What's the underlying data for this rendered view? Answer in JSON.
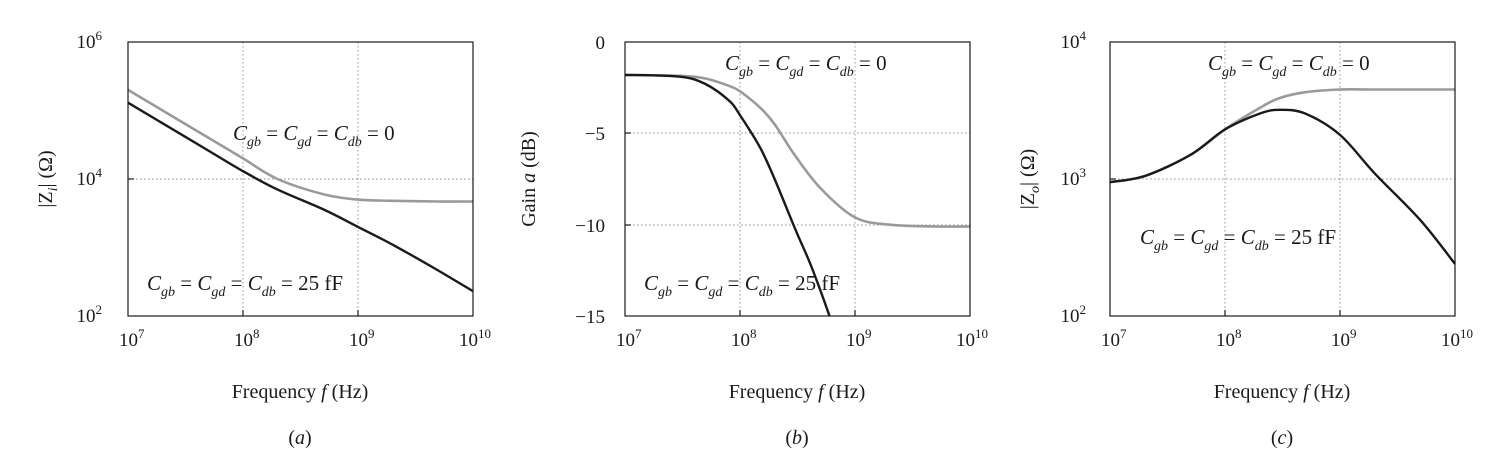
{
  "chart_data": [
    {
      "type": "line",
      "panel_label": "(a)",
      "xlabel": "Frequency f (Hz)",
      "ylabel": "|Z_i| (Ω)",
      "x_scale": "log",
      "y_scale": "log",
      "xlim": [
        10000000,
        10000000000
      ],
      "ylim": [
        100,
        1000000
      ],
      "grid": true,
      "x_ticks": [
        {
          "base": "10",
          "exp": "7"
        },
        {
          "base": "10",
          "exp": "8"
        },
        {
          "base": "10",
          "exp": "9"
        },
        {
          "base": "10",
          "exp": "10"
        }
      ],
      "y_ticks": [
        {
          "base": "10",
          "exp": "2"
        },
        {
          "base": "10",
          "exp": "4"
        },
        {
          "base": "10",
          "exp": "6"
        }
      ],
      "series": [
        {
          "label": "C_gb = C_gd = C_db = 0",
          "color": "#9a9a9a",
          "x": [
            10000000,
            20000000,
            50000000,
            100000000,
            200000000,
            500000000,
            1000000000,
            2000000000,
            5000000000,
            10000000000
          ],
          "y": [
            200000,
            100000,
            40000,
            20000,
            10000,
            6000,
            5000,
            4800,
            4700,
            4700
          ]
        },
        {
          "label": "C_gb = C_gd = C_db = 25 fF",
          "color": "#1a1a1a",
          "x": [
            10000000,
            20000000,
            50000000,
            100000000,
            200000000,
            500000000,
            1000000000,
            2000000000,
            5000000000,
            10000000000
          ],
          "y": [
            130000,
            65000,
            26000,
            13000,
            7000,
            3600,
            2000,
            1100,
            460,
            230
          ]
        }
      ],
      "annotations": [
        {
          "main": "C",
          "sub": "gb",
          "text": "C_gb = C_gd = C_db = 0"
        },
        {
          "main": "C",
          "sub": "gb",
          "text": "C_gb = C_gd = C_db = 25 fF"
        }
      ]
    },
    {
      "type": "line",
      "panel_label": "(b)",
      "xlabel": "Frequency f (Hz)",
      "ylabel": "Gain a (dB)",
      "x_scale": "log",
      "y_scale": "linear",
      "xlim": [
        10000000,
        10000000000
      ],
      "ylim": [
        -15,
        0
      ],
      "grid": true,
      "x_ticks": [
        {
          "base": "10",
          "exp": "7"
        },
        {
          "base": "10",
          "exp": "8"
        },
        {
          "base": "10",
          "exp": "9"
        },
        {
          "base": "10",
          "exp": "10"
        }
      ],
      "y_ticks": [
        {
          "label": "0",
          "value": 0
        },
        {
          "label": "−5",
          "value": -5
        },
        {
          "label": "−10",
          "value": -10
        },
        {
          "label": "−15",
          "value": -15
        }
      ],
      "series": [
        {
          "label": "C_gb = C_gd = C_db = 0",
          "color": "#9a9a9a",
          "x": [
            10000000,
            30000000,
            50000000,
            80000000,
            100000000,
            150000000,
            200000000,
            300000000,
            500000000,
            1000000000,
            2000000000,
            5000000000,
            10000000000
          ],
          "y": [
            -1.8,
            -1.85,
            -2.0,
            -2.4,
            -2.7,
            -3.6,
            -4.5,
            -6.2,
            -8.0,
            -9.6,
            -10.0,
            -10.1,
            -10.1
          ]
        },
        {
          "label": "C_gb = C_gd = C_db = 25 fF",
          "color": "#1a1a1a",
          "x": [
            10000000,
            30000000,
            50000000,
            80000000,
            100000000,
            150000000,
            200000000,
            300000000,
            400000000,
            500000000,
            600000000
          ],
          "y": [
            -1.8,
            -1.9,
            -2.3,
            -3.2,
            -4.0,
            -5.8,
            -7.5,
            -10.2,
            -12.0,
            -13.6,
            -15.0
          ]
        }
      ],
      "annotations": [
        {
          "text": "C_gb = C_gd = C_db = 0"
        },
        {
          "text": "C_gb = C_gd = C_db = 25 fF"
        }
      ]
    },
    {
      "type": "line",
      "panel_label": "(c)",
      "xlabel": "Frequency f (Hz)",
      "ylabel": "|Z_o| (Ω)",
      "x_scale": "log",
      "y_scale": "log",
      "xlim": [
        10000000,
        10000000000
      ],
      "ylim": [
        100,
        10000
      ],
      "grid": true,
      "x_ticks": [
        {
          "base": "10",
          "exp": "7"
        },
        {
          "base": "10",
          "exp": "8"
        },
        {
          "base": "10",
          "exp": "9"
        },
        {
          "base": "10",
          "exp": "10"
        }
      ],
      "y_ticks": [
        {
          "base": "10",
          "exp": "2"
        },
        {
          "base": "10",
          "exp": "3"
        },
        {
          "base": "10",
          "exp": "4"
        }
      ],
      "series": [
        {
          "label": "C_gb = C_gd = C_db = 0",
          "color": "#9a9a9a",
          "x": [
            10000000,
            20000000,
            50000000,
            100000000,
            200000000,
            300000000,
            500000000,
            1000000000,
            2000000000,
            5000000000,
            10000000000
          ],
          "y": [
            950,
            1050,
            1500,
            2300,
            3300,
            3900,
            4300,
            4500,
            4500,
            4500,
            4500
          ]
        },
        {
          "label": "C_gb = C_gd = C_db = 25 fF",
          "color": "#1a1a1a",
          "x": [
            10000000,
            20000000,
            50000000,
            100000000,
            200000000,
            300000000,
            500000000,
            1000000000,
            2000000000,
            5000000000,
            10000000000
          ],
          "y": [
            950,
            1050,
            1500,
            2300,
            3000,
            3200,
            3000,
            2100,
            1100,
            500,
            240
          ]
        }
      ],
      "annotations": [
        {
          "text": "C_gb = C_gd = C_db = 0"
        },
        {
          "text": "C_gb = C_gd = C_db = 25 fF"
        }
      ]
    }
  ],
  "text": {
    "panels": [
      {
        "ylabel_pre": "|Z",
        "ylabel_sub": "i",
        "ylabel_post": "| (Ω)",
        "xlabel_pre": "Frequency ",
        "xlabel_var": "f",
        "xlabel_post": " (Hz)",
        "caption_open": "(",
        "caption_var": "a",
        "caption_close": ")",
        "x_ticks": [
          {
            "base": "10",
            "exp": "7"
          },
          {
            "base": "10",
            "exp": "8"
          },
          {
            "base": "10",
            "exp": "9"
          },
          {
            "base": "10",
            "exp": "10"
          }
        ],
        "y_ticks": [
          {
            "base": "10",
            "exp": "6"
          },
          {
            "base": "10",
            "exp": "4"
          },
          {
            "base": "10",
            "exp": "2"
          }
        ]
      },
      {
        "ylabel_pre": "Gain ",
        "ylabel_var": "a",
        "ylabel_post": " (dB)",
        "xlabel_pre": "Frequency ",
        "xlabel_var": "f",
        "xlabel_post": " (Hz)",
        "caption_open": "(",
        "caption_var": "b",
        "caption_close": ")",
        "x_ticks": [
          {
            "base": "10",
            "exp": "7"
          },
          {
            "base": "10",
            "exp": "8"
          },
          {
            "base": "10",
            "exp": "9"
          },
          {
            "base": "10",
            "exp": "10"
          }
        ],
        "y_ticks": [
          "0",
          "−5",
          "−10",
          "−15"
        ]
      },
      {
        "ylabel_pre": "|Z",
        "ylabel_sub": "o",
        "ylabel_post": "| (Ω)",
        "xlabel_pre": "Frequency ",
        "xlabel_var": "f",
        "xlabel_post": " (Hz)",
        "caption_open": "(",
        "caption_var": "c",
        "caption_close": ")",
        "x_ticks": [
          {
            "base": "10",
            "exp": "7"
          },
          {
            "base": "10",
            "exp": "8"
          },
          {
            "base": "10",
            "exp": "9"
          },
          {
            "base": "10",
            "exp": "10"
          }
        ],
        "y_ticks": [
          {
            "base": "10",
            "exp": "4"
          },
          {
            "base": "10",
            "exp": "3"
          },
          {
            "base": "10",
            "exp": "2"
          }
        ]
      }
    ],
    "ann": {
      "c": "C",
      "gb": "gb",
      "gd": "gd",
      "db": "db",
      "eq": " = ",
      "zero": " = 0",
      "ff": " = 25 fF"
    },
    "colors": {
      "ideal": "#9a9a9a",
      "parasitic": "#1a1a1a"
    }
  }
}
